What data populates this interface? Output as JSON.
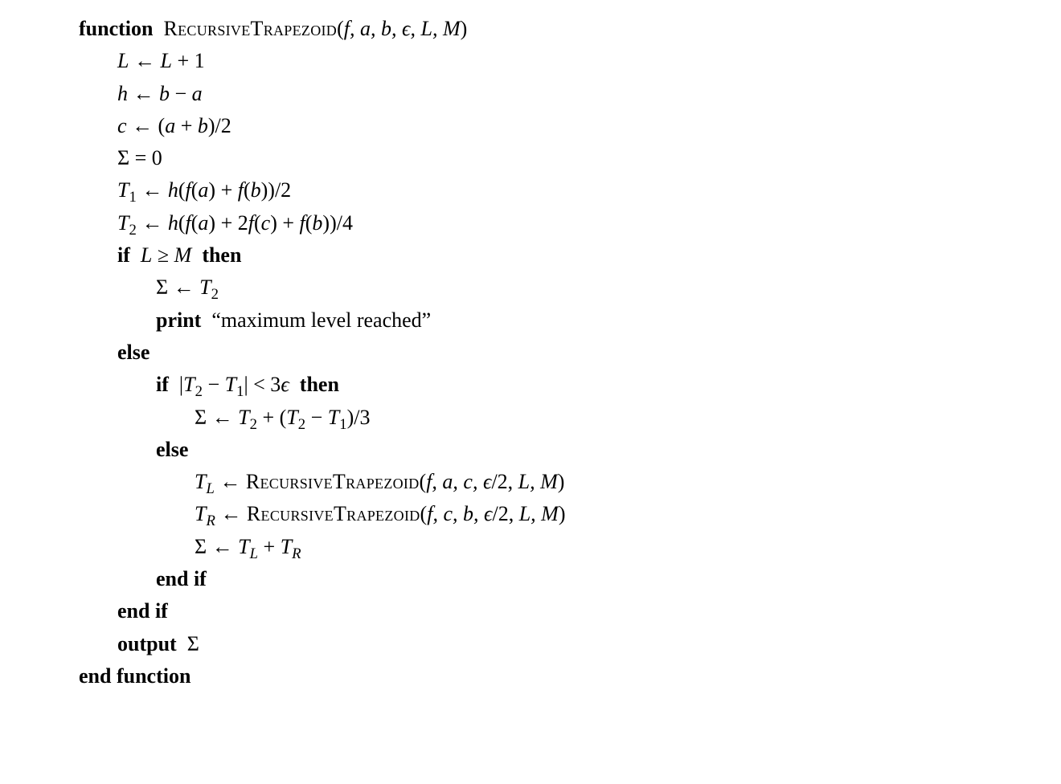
{
  "colors": {
    "fg": "#000000",
    "bg": "#ffffff"
  },
  "typography": {
    "base_fontsize_pt": 20,
    "line_height": 1.55,
    "font_family": "Computer Modern / Latin Modern serif"
  },
  "algorithm": {
    "kw_function": "function",
    "func_name": "RecursiveTrapezoid",
    "params_html": "(<span class='math'>f, a, b, ϵ, L, M</span>)",
    "line_L": "<span class='math'>L</span> ← <span class='math'>L</span> + 1",
    "line_h": "<span class='math'>h</span> ← <span class='math'>b</span> − <span class='math'>a</span>",
    "line_c": "<span class='math'>c</span> ← (<span class='math'>a</span> + <span class='math'>b</span>)/2",
    "line_sigma0": "Σ = 0",
    "line_T1": "<span class='math'>T</span><sub class='rm'>1</sub> ← <span class='math'>h</span>(<span class='math'>f</span>(<span class='math'>a</span>) + <span class='math'>f</span>(<span class='math'>b</span>))/2",
    "line_T2": "<span class='math'>T</span><sub class='rm'>2</sub> ← <span class='math'>h</span>(<span class='math'>f</span>(<span class='math'>a</span>) + 2<span class='math'>f</span>(<span class='math'>c</span>) + <span class='math'>f</span>(<span class='math'>b</span>))/4",
    "kw_if": "if",
    "cond_outer": "<span class='math'>L</span> ≥ <span class='math'>M</span>",
    "kw_then": "then",
    "line_sigma_T2": "Σ ← <span class='math'>T</span><sub class='rm'>2</sub>",
    "kw_print": "print",
    "print_msg": "“maximum level reached”",
    "kw_else": "else",
    "cond_inner": "|<span class='math'>T</span><sub class='rm'>2</sub> − <span class='math'>T</span><sub class='rm'>1</sub>| &lt; 3<span class='math'>ϵ</span>",
    "line_sigma_rich": "Σ ← <span class='math'>T</span><sub class='rm'>2</sub> + (<span class='math'>T</span><sub class='rm'>2</sub> − <span class='math'>T</span><sub class='rm'>1</sub>)/3",
    "line_TL": "<span class='math'>T</span><sub>L</sub> ← <span class='sc'>RecursiveTrapezoid</span>(<span class='math'>f, a, c, ϵ</span>/2, <span class='math'>L, M</span>)",
    "line_TR": "<span class='math'>T</span><sub>R</sub> ← <span class='sc'>RecursiveTrapezoid</span>(<span class='math'>f, c, b, ϵ</span>/2, <span class='math'>L, M</span>)",
    "line_sigma_sum": "Σ ← <span class='math'>T</span><sub>L</sub> + <span class='math'>T</span><sub>R</sub>",
    "kw_endif": "end if",
    "kw_output": "output",
    "output_sym": "Σ",
    "kw_endfunction": "end function"
  }
}
